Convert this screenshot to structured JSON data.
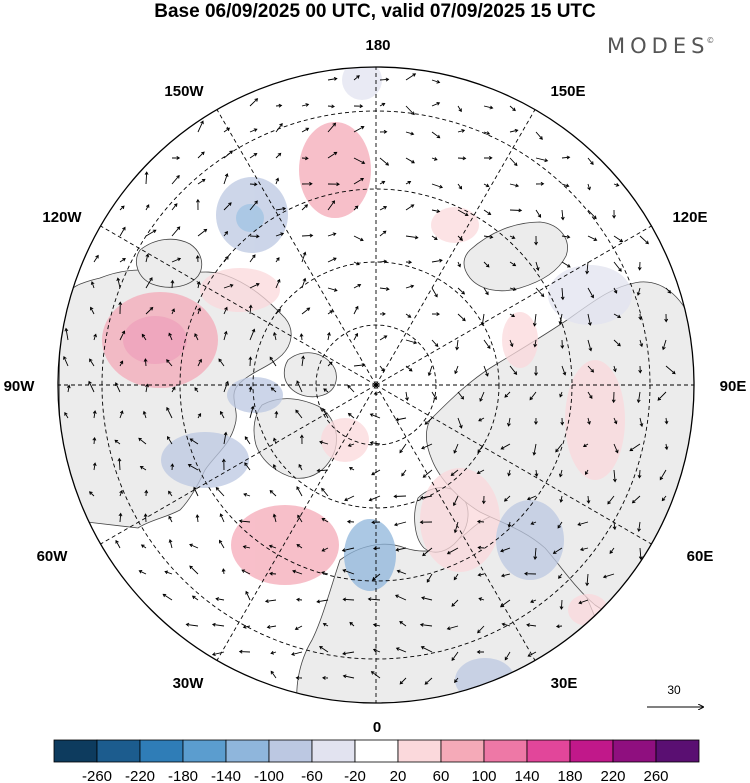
{
  "title": "Base 06/09/2025 00 UTC, valid 07/09/2025 15 UTC",
  "brand": "MODES",
  "brand_mark": "©",
  "lon_labels": {
    "top": "180",
    "bottom": "0",
    "left": "90W",
    "right": "90E",
    "nw_upper": "150W",
    "nw_lower": "120W",
    "ne_upper": "150E",
    "ne_lower": "120E",
    "sw_upper": "60W",
    "sw_lower": "30W",
    "se_upper": "60E",
    "se_lower": "30E"
  },
  "vector_scale": {
    "label": "30"
  },
  "colorbar": {
    "colors": [
      "#0d3b5e",
      "#1c5c8e",
      "#2f7db7",
      "#5b9dcf",
      "#8fb6dc",
      "#bcc8e2",
      "#e2e3f0",
      "#ffffff",
      "#fbd9dc",
      "#f5aab8",
      "#ee78a6",
      "#e2469a",
      "#c1188a",
      "#8f0f7f",
      "#5a0f72"
    ],
    "labels": [
      "-260",
      "-220",
      "-180",
      "-140",
      "-100",
      "-60",
      "-20",
      "20",
      "60",
      "100",
      "140",
      "180",
      "220",
      "260"
    ]
  }
}
